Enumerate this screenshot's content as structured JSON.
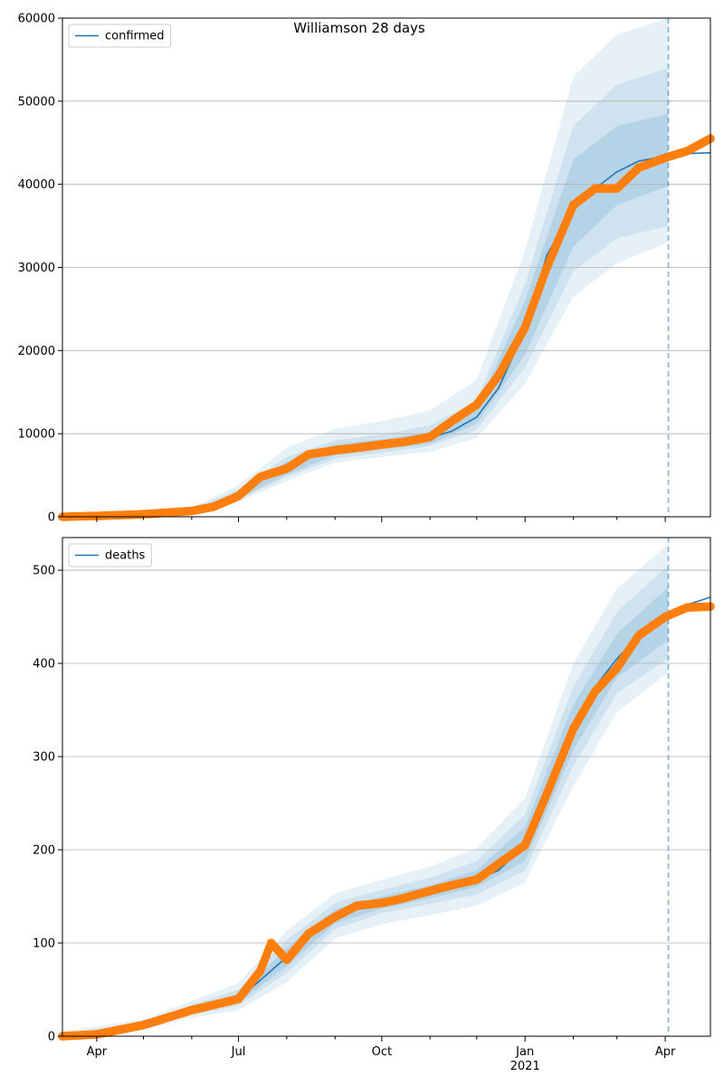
{
  "chart_data": [
    {
      "type": "line",
      "title": "Williamson 28 days",
      "legend": {
        "entries": [
          "confirmed"
        ],
        "placement": "top-left"
      },
      "grid": "horizontal",
      "ylim": [
        0,
        60000
      ],
      "yticks": [
        0,
        10000,
        20000,
        30000,
        40000,
        50000,
        60000
      ],
      "xlim": [
        "2020-03-10",
        "2021-04-30"
      ],
      "forecast_start": "2021-04-03",
      "colors": {
        "model": "#1f77b4",
        "observed": "#ff7f0e",
        "band": "#1f77b4"
      },
      "series": [
        {
          "name": "confirmed",
          "kind": "model",
          "x": [
            "2020-03-10",
            "2020-04-01",
            "2020-05-01",
            "2020-06-01",
            "2020-06-15",
            "2020-07-01",
            "2020-07-15",
            "2020-08-01",
            "2020-08-15",
            "2020-09-01",
            "2020-09-15",
            "2020-10-01",
            "2020-10-15",
            "2020-11-01",
            "2020-11-15",
            "2020-12-01",
            "2020-12-15",
            "2021-01-01",
            "2021-01-15",
            "2021-02-01",
            "2021-02-15",
            "2021-03-01",
            "2021-03-15",
            "2021-04-01",
            "2021-04-15",
            "2021-04-30"
          ],
          "y": [
            0,
            100,
            300,
            700,
            1200,
            2500,
            4500,
            5800,
            7200,
            7900,
            8300,
            8700,
            9000,
            9500,
            10300,
            12000,
            15500,
            22500,
            31500,
            37000,
            39500,
            41500,
            42800,
            43400,
            43700,
            43800
          ]
        },
        {
          "name": "",
          "kind": "observed",
          "x": [
            "2020-03-10",
            "2020-04-01",
            "2020-05-01",
            "2020-06-01",
            "2020-06-15",
            "2020-07-01",
            "2020-07-15",
            "2020-08-01",
            "2020-08-15",
            "2020-09-01",
            "2020-09-15",
            "2020-10-01",
            "2020-10-15",
            "2020-11-01",
            "2020-11-15",
            "2020-12-01",
            "2020-12-15",
            "2021-01-01",
            "2021-01-15",
            "2021-02-01",
            "2021-02-15",
            "2021-03-01",
            "2021-03-15",
            "2021-04-01",
            "2021-04-15",
            "2021-04-30"
          ],
          "y": [
            0,
            100,
            300,
            700,
            1200,
            2500,
            4800,
            5800,
            7500,
            8000,
            8300,
            8700,
            9000,
            9600,
            11500,
            13500,
            17000,
            22800,
            30000,
            37500,
            39500,
            39500,
            42000,
            43200,
            44000,
            45500
          ]
        }
      ],
      "bands": [
        {
          "x": [
            "2020-03-10",
            "2020-06-01",
            "2020-07-01",
            "2020-08-01",
            "2020-09-01",
            "2020-10-01",
            "2020-11-01",
            "2020-12-01",
            "2021-01-01",
            "2021-02-01",
            "2021-03-01",
            "2021-04-03"
          ],
          "low": [
            0,
            600,
            2000,
            4800,
            7000,
            7700,
            8500,
            10500,
            18000,
            29500,
            33500,
            35000
          ],
          "high": [
            0,
            900,
            3300,
            7200,
            9200,
            9900,
            11000,
            14000,
            28000,
            47000,
            52000,
            54000
          ]
        },
        {
          "x": [
            "2020-03-10",
            "2020-06-01",
            "2020-07-01",
            "2020-08-01",
            "2020-09-01",
            "2020-10-01",
            "2020-11-01",
            "2020-12-01",
            "2021-01-01",
            "2021-02-01",
            "2021-03-01",
            "2021-04-03"
          ],
          "low": [
            0,
            500,
            1800,
            4300,
            6500,
            7200,
            7800,
            9500,
            16000,
            26500,
            30500,
            33000
          ],
          "high": [
            0,
            1100,
            3800,
            8300,
            10600,
            11500,
            12800,
            16500,
            32000,
            53000,
            58000,
            60000
          ]
        },
        {
          "x": [
            "2020-03-10",
            "2020-06-01",
            "2020-07-01",
            "2020-08-01",
            "2020-09-01",
            "2020-10-01",
            "2020-11-01",
            "2020-12-01",
            "2021-01-01",
            "2021-02-01",
            "2021-03-01",
            "2021-04-03"
          ],
          "low": [
            0,
            650,
            2200,
            5100,
            7400,
            8100,
            8800,
            11200,
            19500,
            32500,
            37500,
            39800
          ],
          "high": [
            0,
            800,
            3000,
            6600,
            8700,
            9300,
            10200,
            13000,
            26000,
            43000,
            47000,
            48500
          ]
        }
      ]
    },
    {
      "type": "line",
      "title": "",
      "legend": {
        "entries": [
          "deaths"
        ],
        "placement": "top-left"
      },
      "grid": "horizontal",
      "ylim": [
        0,
        535
      ],
      "yticks": [
        0,
        100,
        200,
        300,
        400,
        500
      ],
      "xlim": [
        "2020-03-10",
        "2021-04-30"
      ],
      "xticks": [
        {
          "date": "2020-04-01",
          "label": "Apr"
        },
        {
          "date": "2020-07-01",
          "label": "Jul"
        },
        {
          "date": "2020-10-01",
          "label": "Oct"
        },
        {
          "date": "2021-01-01",
          "label": "Jan",
          "sublabel": "2021"
        },
        {
          "date": "2021-04-01",
          "label": "Apr"
        }
      ],
      "forecast_start": "2021-04-03",
      "colors": {
        "model": "#1f77b4",
        "observed": "#ff7f0e",
        "band": "#1f77b4"
      },
      "series": [
        {
          "name": "deaths",
          "kind": "model",
          "x": [
            "2020-03-10",
            "2020-04-01",
            "2020-05-01",
            "2020-06-01",
            "2020-07-01",
            "2020-07-15",
            "2020-08-01",
            "2020-08-15",
            "2020-09-01",
            "2020-09-15",
            "2020-10-01",
            "2020-10-15",
            "2020-11-01",
            "2020-11-15",
            "2020-12-01",
            "2020-12-15",
            "2021-01-01",
            "2021-01-15",
            "2021-02-01",
            "2021-02-15",
            "2021-03-01",
            "2021-03-15",
            "2021-04-01",
            "2021-04-15",
            "2021-04-30"
          ],
          "y": [
            0,
            2,
            12,
            28,
            40,
            60,
            85,
            110,
            128,
            138,
            143,
            148,
            155,
            160,
            168,
            178,
            205,
            265,
            330,
            375,
            405,
            430,
            452,
            463,
            471
          ]
        },
        {
          "name": "",
          "kind": "observed",
          "x": [
            "2020-03-10",
            "2020-04-01",
            "2020-05-01",
            "2020-06-01",
            "2020-07-01",
            "2020-07-15",
            "2020-07-22",
            "2020-08-01",
            "2020-08-15",
            "2020-09-01",
            "2020-09-15",
            "2020-10-01",
            "2020-10-15",
            "2020-11-01",
            "2020-11-15",
            "2020-12-01",
            "2020-12-15",
            "2021-01-01",
            "2021-01-15",
            "2021-02-01",
            "2021-02-15",
            "2021-03-01",
            "2021-03-15",
            "2021-04-01",
            "2021-04-15",
            "2021-04-30"
          ],
          "y": [
            0,
            2,
            12,
            28,
            40,
            70,
            100,
            82,
            110,
            128,
            140,
            143,
            148,
            156,
            162,
            168,
            185,
            205,
            260,
            330,
            370,
            395,
            430,
            450,
            460,
            461
          ]
        }
      ],
      "bands": [
        {
          "x": [
            "2020-03-10",
            "2020-05-01",
            "2020-06-01",
            "2020-07-01",
            "2020-08-01",
            "2020-09-01",
            "2020-10-01",
            "2020-11-01",
            "2020-12-01",
            "2021-01-01",
            "2021-02-01",
            "2021-03-01",
            "2021-04-03"
          ],
          "low": [
            0,
            9,
            23,
            33,
            68,
            115,
            132,
            142,
            152,
            178,
            290,
            368,
            405
          ],
          "high": [
            3,
            15,
            34,
            50,
            103,
            143,
            157,
            170,
            188,
            238,
            375,
            455,
            505
          ]
        },
        {
          "x": [
            "2020-03-10",
            "2020-05-01",
            "2020-06-01",
            "2020-07-01",
            "2020-08-01",
            "2020-09-01",
            "2020-10-01",
            "2020-11-01",
            "2020-12-01",
            "2021-01-01",
            "2021-02-01",
            "2021-03-01",
            "2021-04-03"
          ],
          "low": [
            0,
            7,
            20,
            28,
            58,
            105,
            120,
            130,
            140,
            165,
            268,
            348,
            390
          ],
          "high": [
            5,
            18,
            38,
            57,
            113,
            153,
            168,
            182,
            202,
            255,
            400,
            480,
            528
          ]
        },
        {
          "x": [
            "2020-03-10",
            "2020-05-01",
            "2020-06-01",
            "2020-07-01",
            "2020-08-01",
            "2020-09-01",
            "2020-10-01",
            "2020-11-01",
            "2020-12-01",
            "2021-01-01",
            "2021-02-01",
            "2021-03-01",
            "2021-04-03"
          ],
          "low": [
            1,
            10,
            25,
            36,
            75,
            121,
            137,
            148,
            160,
            188,
            307,
            385,
            425
          ],
          "high": [
            2,
            13,
            31,
            45,
            95,
            136,
            150,
            162,
            178,
            225,
            356,
            432,
            482
          ]
        }
      ]
    }
  ]
}
